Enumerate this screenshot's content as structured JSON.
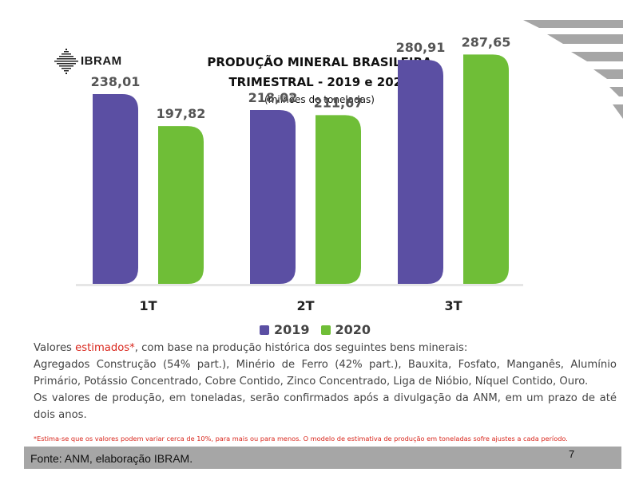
{
  "header": {
    "logo_text": "IBRAM",
    "title_line1": "PRODUÇÃO MINERAL BRASILEIRA",
    "title_line2": "TRIMESTRAL - 2019 e 2020",
    "subtitle": "(milhões de toneladas)"
  },
  "chart_data": {
    "type": "bar",
    "categories": [
      "1T",
      "2T",
      "3T"
    ],
    "series": [
      {
        "name": "2019",
        "values": [
          238.01,
          218.02,
          280.91
        ],
        "labels": [
          "238,01",
          "218,02",
          "280,91"
        ],
        "color": "#5b4fa3"
      },
      {
        "name": "2020",
        "values": [
          197.82,
          211.67,
          287.65
        ],
        "labels": [
          "197,82",
          "211,67",
          "287,65"
        ],
        "color": "#6fbe37"
      }
    ],
    "title": "PRODUÇÃO MINERAL BRASILEIRA TRIMESTRAL - 2019 e 2020",
    "ylabel": "(milhões de toneladas)",
    "ylim": [
      0,
      300
    ],
    "grid": false,
    "legend": "bottom"
  },
  "notes": {
    "line1_prefix": "Valores ",
    "line1_highlight": "estimados*",
    "line1_suffix": ", com base na produção histórica dos seguintes bens minerais:",
    "line2": "Agregados Construção (54% part.), Minério de Ferro (42% part.), Bauxita, Fosfato, Manganês, Alumínio Primário, Potássio Concentrado, Cobre Contido, Zinco Concentrado, Liga de Nióbio, Níquel Contido, Ouro.",
    "line3": "Os valores de produção, em toneladas, serão confirmados após a divulgação da ANM, em um prazo de até dois anos."
  },
  "footnote": "*Estima-se que os valores podem variar cerca de 10%, para mais ou para menos. O modelo de estimativa de produção em toneladas sofre ajustes a cada período.",
  "footer": {
    "source": "Fonte: ANM, elaboração IBRAM.",
    "page": "7"
  }
}
